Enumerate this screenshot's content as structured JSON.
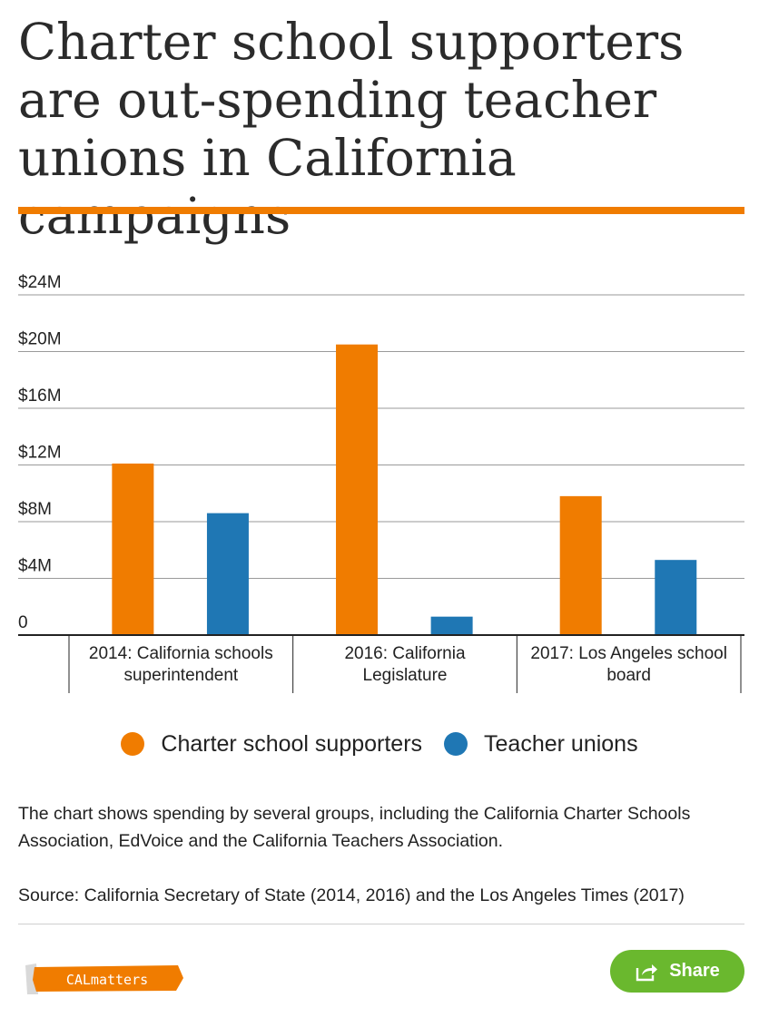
{
  "header": {
    "title": "Charter school supporters are out-spending teacher unions in California campaigns"
  },
  "chart_data": {
    "type": "bar",
    "title": "Charter school supporters are out-spending teacher unions in California campaigns",
    "xlabel": "",
    "ylabel": "",
    "ylim": [
      0,
      24
    ],
    "y_ticks": [
      {
        "value": 0,
        "label": "0"
      },
      {
        "value": 4,
        "label": "$4M"
      },
      {
        "value": 8,
        "label": "$8M"
      },
      {
        "value": 12,
        "label": "$12M"
      },
      {
        "value": 16,
        "label": "$16M"
      },
      {
        "value": 20,
        "label": "$20M"
      },
      {
        "value": 24,
        "label": "$24M"
      }
    ],
    "grid": true,
    "categories": [
      [
        "2014: California schools",
        "superintendent"
      ],
      [
        "2016: California",
        "Legislature"
      ],
      [
        "2017: Los Angeles school",
        "board"
      ]
    ],
    "series": [
      {
        "name": "Charter school supporters",
        "color": "#f07c00",
        "values": [
          12.1,
          20.5,
          9.8
        ]
      },
      {
        "name": "Teacher unions",
        "color": "#1f77b4",
        "values": [
          8.6,
          1.3,
          5.3
        ]
      }
    ],
    "legend_position": "bottom"
  },
  "legend": {
    "items": [
      {
        "label": "Charter school supporters",
        "color": "#f07c00"
      },
      {
        "label": "Teacher unions",
        "color": "#1f77b4"
      }
    ]
  },
  "footer": {
    "note": "The chart shows spending by several groups, including the California Charter Schools Association, EdVoice and the California Teachers Association.",
    "source": "Source: California Secretary of State (2014, 2016) and the Los Angeles Times (2017)",
    "logo_text": "CALmatters",
    "share_label": "Share",
    "share_icon": "share-icon",
    "accent_color": "#f07c00",
    "share_color": "#6ab82e"
  }
}
